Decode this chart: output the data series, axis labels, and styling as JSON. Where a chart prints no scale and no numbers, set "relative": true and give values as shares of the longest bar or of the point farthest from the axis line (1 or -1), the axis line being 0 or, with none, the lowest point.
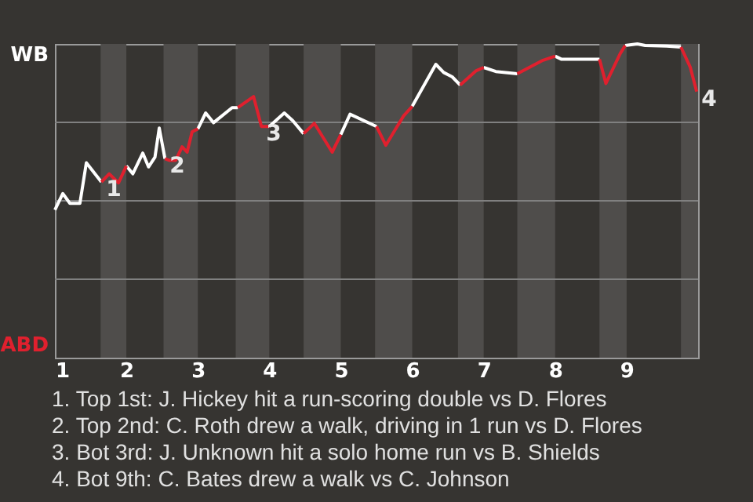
{
  "chart_data": {
    "type": "line",
    "relative": true,
    "x": [
      1.0,
      1.11,
      1.21,
      1.35,
      1.44,
      1.65,
      1.76,
      1.89,
      2.0,
      2.09,
      2.23,
      2.31,
      2.4,
      2.46,
      2.54,
      2.6,
      2.69,
      2.78,
      2.85,
      2.92,
      3.0,
      3.11,
      3.22,
      3.48,
      3.56,
      3.78,
      3.89,
      4.0,
      4.21,
      4.33,
      4.48,
      4.63,
      4.88,
      5.0,
      5.13,
      5.5,
      5.63,
      5.88,
      6.0,
      6.33,
      6.44,
      6.56,
      6.67,
      6.89,
      7.0,
      7.17,
      7.47,
      7.83,
      8.0,
      8.09,
      8.62,
      8.71,
      8.91,
      8.98,
      9.15,
      9.26,
      9.56,
      9.76,
      9.89,
      9.98
    ],
    "series": [
      {
        "color": "#ffffff",
        "values": [
          0.471,
          0.523,
          0.492,
          0.492,
          0.621,
          0.56,
          null,
          null,
          0.611,
          0.586,
          0.652,
          0.608,
          0.639,
          0.732,
          0.634,
          null,
          null,
          null,
          null,
          null,
          0.729,
          0.78,
          0.749,
          0.797,
          0.797,
          null,
          null,
          0.737,
          0.78,
          0.755,
          0.714,
          null,
          null,
          0.711,
          0.776,
          0.737,
          null,
          null,
          0.801,
          0.935,
          0.909,
          0.895,
          0.869,
          null,
          0.925,
          0.912,
          0.905,
          null,
          0.961,
          0.951,
          0.951,
          null,
          null,
          0.995,
          1,
          0.995,
          0.993,
          0.99,
          null,
          null
        ]
      },
      {
        "color": "#e0202e",
        "values": [
          null,
          null,
          null,
          null,
          null,
          0.56,
          0.586,
          0.557,
          0.611,
          null,
          null,
          null,
          null,
          null,
          0.634,
          0.629,
          0.629,
          0.672,
          0.655,
          0.72,
          0.729,
          null,
          null,
          null,
          0.797,
          0.832,
          0.737,
          0.737,
          null,
          null,
          0.714,
          0.747,
          0.655,
          0.711,
          null,
          0.737,
          0.677,
          0.771,
          0.801,
          null,
          null,
          null,
          0.869,
          0.914,
          0.925,
          null,
          0.905,
          0.948,
          0.961,
          null,
          0.951,
          0.874,
          0.969,
          0.995,
          null,
          null,
          null,
          0.99,
          0.926,
          0.848
        ]
      }
    ],
    "xlim": [
      1,
      10
    ],
    "xticks": [
      1,
      2,
      3,
      4,
      5,
      6,
      7,
      8,
      9
    ],
    "grid": "y",
    "bands": [
      {
        "axis": "x",
        "from": 1.64,
        "to": 2,
        "color": "#4f4d4b"
      },
      {
        "axis": "x",
        "from": 2.52,
        "to": 3,
        "color": "#4f4d4b"
      },
      {
        "axis": "x",
        "from": 3.53,
        "to": 4,
        "color": "#4f4d4b"
      },
      {
        "axis": "x",
        "from": 4.48,
        "to": 5,
        "color": "#4f4d4b"
      },
      {
        "axis": "x",
        "from": 5.48,
        "to": 6,
        "color": "#4f4d4b"
      },
      {
        "axis": "x",
        "from": 6.64,
        "to": 7,
        "color": "#4f4d4b"
      },
      {
        "axis": "x",
        "from": 7.47,
        "to": 8,
        "color": "#4f4d4b"
      },
      {
        "axis": "x",
        "from": 8.62,
        "to": 9,
        "color": "#4f4d4b"
      },
      {
        "axis": "x",
        "from": 9.76,
        "to": 10,
        "color": "#4f4d4b"
      }
    ],
    "annotations": [
      {
        "text": "1",
        "x": 1.65,
        "y": 0.56
      },
      {
        "text": "2",
        "x": 2.54,
        "y": 0.634
      },
      {
        "text": "3",
        "x": 3.89,
        "y": 0.737
      },
      {
        "text": "4",
        "x": 9.98,
        "y": 0.848
      },
      "WB",
      "ABD",
      "1. Top 1st: J. Hickey hit a run-scoring double vs D. Flores",
      "2. Top 2nd: C. Roth drew a walk, driving in 1 run vs D. Flores",
      "3. Bot 3rd: J. Unknown hit a solo home run vs B. Shields",
      "4. Bot 9th: C. Bates drew a walk vs C. Johnson"
    ]
  }
}
